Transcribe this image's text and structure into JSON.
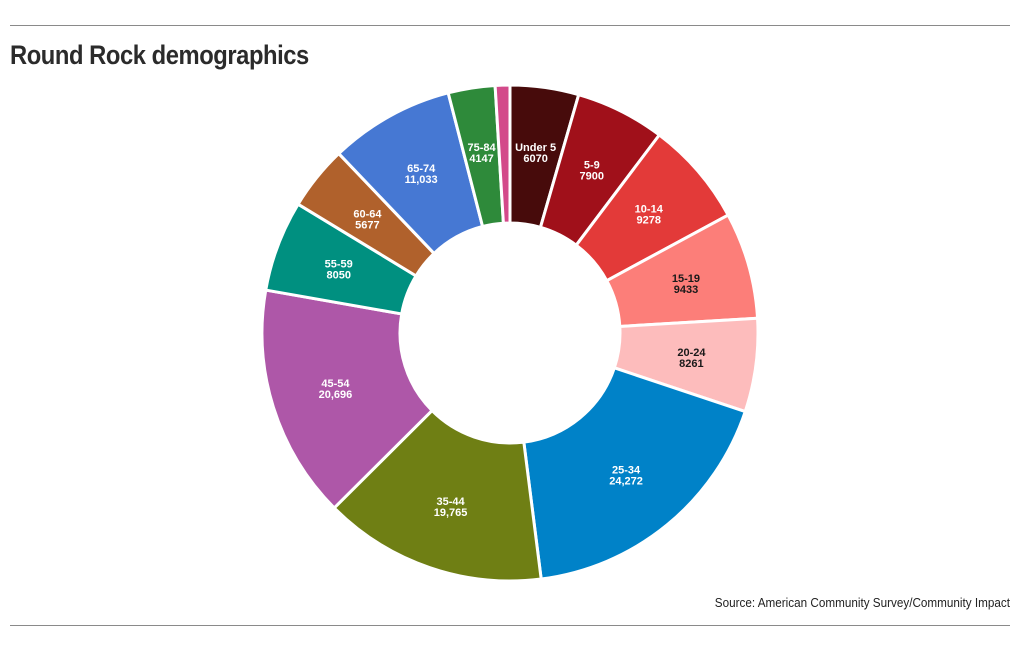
{
  "title": "Round Rock demographics",
  "source": "Source: American Community Survey/Community Impact",
  "chart_data": {
    "type": "pie",
    "variant": "donut",
    "title": "Round Rock demographics",
    "slices": [
      {
        "label": "Under 5",
        "value": 6070,
        "display": "6070",
        "color": "#470b0b",
        "text_color": "#ffffff"
      },
      {
        "label": "5-9",
        "value": 7900,
        "display": "7900",
        "color": "#a0101a",
        "text_color": "#ffffff"
      },
      {
        "label": "10-14",
        "value": 9278,
        "display": "9278",
        "color": "#e33a39",
        "text_color": "#ffffff"
      },
      {
        "label": "15-19",
        "value": 9433,
        "display": "9433",
        "color": "#fc7e79",
        "text_color": "#1a1a1a"
      },
      {
        "label": "20-24",
        "value": 8261,
        "display": "8261",
        "color": "#fdbcbc",
        "text_color": "#1a1a1a"
      },
      {
        "label": "25-34",
        "value": 24272,
        "display": "24,272",
        "color": "#0082c8",
        "text_color": "#ffffff"
      },
      {
        "label": "35-44",
        "value": 19765,
        "display": "19,765",
        "color": "#6f7f14",
        "text_color": "#ffffff"
      },
      {
        "label": "45-54",
        "value": 20696,
        "display": "20,696",
        "color": "#ae57a8",
        "text_color": "#ffffff"
      },
      {
        "label": "55-59",
        "value": 8050,
        "display": "8050",
        "color": "#009080",
        "text_color": "#ffffff"
      },
      {
        "label": "60-64",
        "value": 5677,
        "display": "5677",
        "color": "#b0612c",
        "text_color": "#ffffff"
      },
      {
        "label": "65-74",
        "value": 11033,
        "display": "11,033",
        "color": "#4678d3",
        "text_color": "#ffffff"
      },
      {
        "label": "75-84",
        "value": 4147,
        "display": "4147",
        "color": "#2e8a3a",
        "text_color": "#ffffff"
      },
      {
        "label": "",
        "value": 1300,
        "display": "",
        "color": "#d34a8a",
        "text_color": "#ffffff"
      }
    ]
  }
}
